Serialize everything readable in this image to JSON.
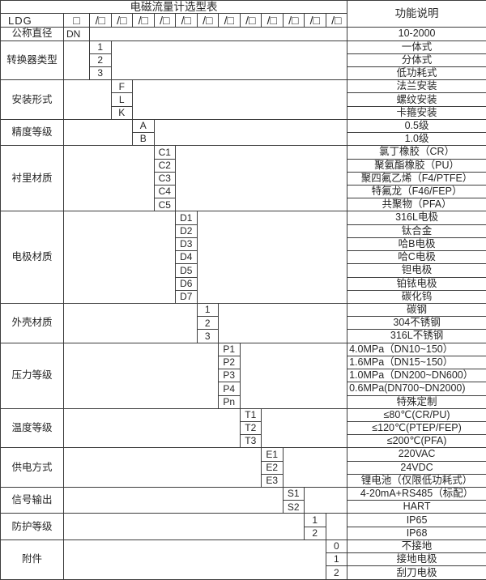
{
  "table": {
    "title": "电磁流量计选型表",
    "function_header": "功能说明",
    "model_prefix": "LDG",
    "box_symbol": "□",
    "slot_symbol": "/□",
    "slot_count": 12,
    "diameter": {
      "label": "公称直径",
      "code": "DN",
      "desc": "10-2000"
    },
    "groups": [
      {
        "label": "转换器类型",
        "slot": 0,
        "rows": [
          {
            "code": "1",
            "desc": "一体式"
          },
          {
            "code": "2",
            "desc": "分体式"
          },
          {
            "code": "3",
            "desc": "低功耗式"
          }
        ]
      },
      {
        "label": "安装形式",
        "slot": 1,
        "rows": [
          {
            "code": "F",
            "desc": "法兰安装"
          },
          {
            "code": "L",
            "desc": "螺纹安装"
          },
          {
            "code": "K",
            "desc": "卡箍安装"
          }
        ]
      },
      {
        "label": "精度等级",
        "slot": 2,
        "rows": [
          {
            "code": "A",
            "desc": "0.5级"
          },
          {
            "code": "B",
            "desc": "1.0级"
          }
        ]
      },
      {
        "label": "衬里材质",
        "slot": 3,
        "rows": [
          {
            "code": "C1",
            "desc": "氯丁橡胶（CR）"
          },
          {
            "code": "C2",
            "desc": "聚氨酯橡胶（PU）"
          },
          {
            "code": "C3",
            "desc": "聚四氟乙烯（F4/PTFE）"
          },
          {
            "code": "C4",
            "desc": "特氟龙（F46/FEP）"
          },
          {
            "code": "C5",
            "desc": "共聚物（PFA）"
          }
        ]
      },
      {
        "label": "电极材质",
        "slot": 4,
        "rows": [
          {
            "code": "D1",
            "desc": "316L电极"
          },
          {
            "code": "D2",
            "desc": "钛合金"
          },
          {
            "code": "D3",
            "desc": "哈B电极"
          },
          {
            "code": "D4",
            "desc": "哈C电极"
          },
          {
            "code": "D5",
            "desc": "钽电极"
          },
          {
            "code": "D6",
            "desc": "铂铱电极"
          },
          {
            "code": "D7",
            "desc": "碳化钨"
          }
        ]
      },
      {
        "label": "外壳材质",
        "slot": 5,
        "rows": [
          {
            "code": "1",
            "desc": "碳钢"
          },
          {
            "code": "2",
            "desc": "304不锈钢"
          },
          {
            "code": "3",
            "desc": "316L不锈钢"
          }
        ]
      },
      {
        "label": "压力等级",
        "slot": 6,
        "rows": [
          {
            "code": "P1",
            "desc": "4.0MPa（DN10~150）",
            "align": "left"
          },
          {
            "code": "P2",
            "desc": "1.6MPa（DN15~150）",
            "align": "left"
          },
          {
            "code": "P3",
            "desc": "1.0MPa（DN200~DN600）",
            "align": "left"
          },
          {
            "code": "P4",
            "desc": "0.6MPa(DN700~DN2000)",
            "align": "left"
          },
          {
            "code": "Pn",
            "desc": "特殊定制"
          }
        ]
      },
      {
        "label": "温度等级",
        "slot": 7,
        "rows": [
          {
            "code": "T1",
            "desc": "≤80℃(CR/PU)"
          },
          {
            "code": "T2",
            "desc": "≤120℃(PTEP/FEP)"
          },
          {
            "code": "T3",
            "desc": "≤200℃(PFA)"
          }
        ]
      },
      {
        "label": "供电方式",
        "slot": 8,
        "rows": [
          {
            "code": "E1",
            "desc": "220VAC"
          },
          {
            "code": "E2",
            "desc": "24VDC"
          },
          {
            "code": "E3",
            "desc": "锂电池（仅限低功耗式）"
          }
        ]
      },
      {
        "label": "信号输出",
        "slot": 9,
        "rows": [
          {
            "code": "S1",
            "desc": "4-20mA+RS485（标配）"
          },
          {
            "code": "S2",
            "desc": "HART"
          }
        ]
      },
      {
        "label": "防护等级",
        "slot": 10,
        "rows": [
          {
            "code": "1",
            "desc": "IP65"
          },
          {
            "code": "2",
            "desc": "IP68"
          }
        ]
      },
      {
        "label": "附件",
        "slot": 11,
        "rows": [
          {
            "code": "0",
            "desc": "不接地"
          },
          {
            "code": "1",
            "desc": "接地电极"
          },
          {
            "code": "2",
            "desc": "刮刀电极"
          }
        ]
      }
    ]
  }
}
